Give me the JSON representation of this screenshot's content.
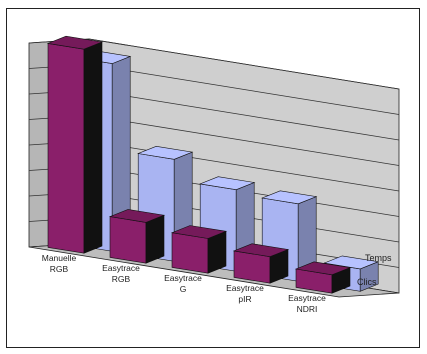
{
  "chart_data": {
    "type": "bar",
    "title": "",
    "categories": [
      "Manuelle RGB",
      "Easytrace RGB",
      "Easytrace G",
      "Easytrace pIR",
      "Easytrace NDRI"
    ],
    "series": [
      {
        "name": "Clics",
        "values": [
          100,
          20,
          17,
          13,
          9
        ],
        "color": "#8a1f6a"
      },
      {
        "name": "Temps",
        "values": [
          92,
          50,
          40,
          38,
          11
        ],
        "color": "#a9b4f2"
      }
    ],
    "ylim": [
      0,
      100
    ],
    "gridlines": 8,
    "grid": true,
    "three_d": true,
    "colors": {
      "wall": "#cfcfcf",
      "floor": "#bdbdbd",
      "grid": "#333333",
      "frame": "#222222"
    }
  }
}
